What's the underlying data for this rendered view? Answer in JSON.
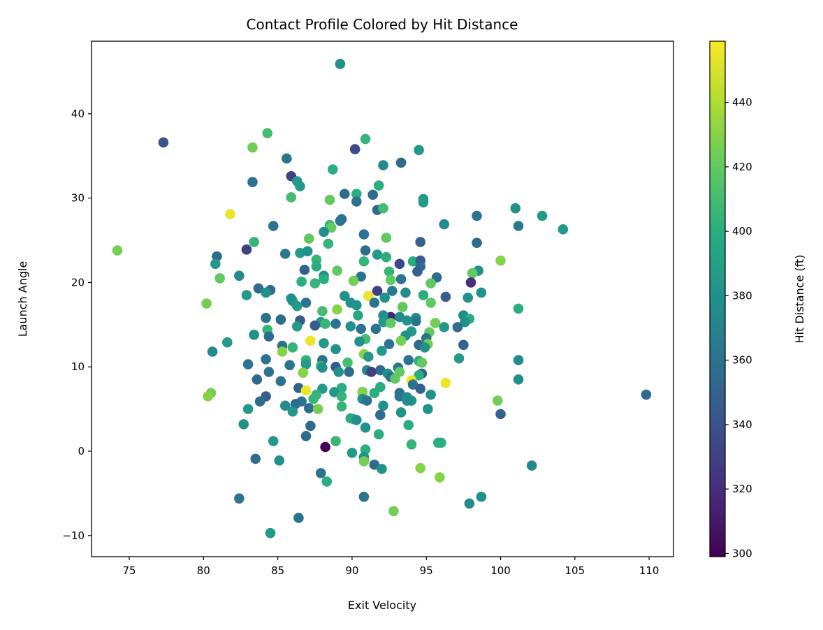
{
  "chart_data": {
    "type": "scatter",
    "title": "Contact Profile Colored by Hit Distance",
    "xlabel": "Exit Velocity",
    "ylabel": "Launch Angle",
    "xlim": [
      72.46,
      111.64
    ],
    "ylim": [
      -12.5,
      48.6
    ],
    "xticks": [
      75,
      80,
      85,
      90,
      95,
      100,
      105,
      110
    ],
    "yticks": [
      -10,
      0,
      10,
      20,
      30,
      40
    ],
    "grid": false,
    "colorbar": {
      "label": "Hit Distance (ft)",
      "colormap": "viridis",
      "range": [
        299,
        459
      ],
      "ticks": [
        300,
        320,
        340,
        360,
        380,
        400,
        420,
        440
      ]
    },
    "point_fields": [
      "exit_velocity",
      "launch_angle",
      "hit_distance"
    ],
    "points": [
      [
        89.2,
        45.9,
        380
      ],
      [
        77.3,
        36.6,
        340
      ],
      [
        74.2,
        23.8,
        425
      ],
      [
        84.3,
        37.7,
        410
      ],
      [
        83.3,
        36.0,
        425
      ],
      [
        90.2,
        35.8,
        335
      ],
      [
        90.9,
        37.0,
        405
      ],
      [
        94.5,
        35.7,
        385
      ],
      [
        93.3,
        34.2,
        355
      ],
      [
        92.1,
        33.9,
        375
      ],
      [
        85.6,
        34.7,
        360
      ],
      [
        88.7,
        33.4,
        400
      ],
      [
        85.9,
        32.6,
        330
      ],
      [
        83.3,
        31.9,
        360
      ],
      [
        86.3,
        32.0,
        385
      ],
      [
        86.5,
        31.4,
        385
      ],
      [
        91.8,
        31.5,
        400
      ],
      [
        81.8,
        28.1,
        455
      ],
      [
        89.5,
        30.5,
        355
      ],
      [
        90.3,
        30.5,
        400
      ],
      [
        91.4,
        30.4,
        355
      ],
      [
        85.9,
        30.1,
        410
      ],
      [
        88.5,
        29.8,
        420
      ],
      [
        90.3,
        29.6,
        360
      ],
      [
        94.8,
        29.9,
        385
      ],
      [
        94.8,
        29.5,
        385
      ],
      [
        91.7,
        28.6,
        355
      ],
      [
        92.1,
        28.8,
        410
      ],
      [
        101.0,
        28.8,
        380
      ],
      [
        102.8,
        27.9,
        385
      ],
      [
        98.4,
        27.9,
        360
      ],
      [
        96.2,
        26.9,
        375
      ],
      [
        101.2,
        26.7,
        365
      ],
      [
        104.2,
        26.3,
        385
      ],
      [
        84.7,
        26.7,
        360
      ],
      [
        89.2,
        27.3,
        360
      ],
      [
        89.3,
        27.5,
        360
      ],
      [
        88.5,
        26.8,
        405
      ],
      [
        88.6,
        26.5,
        420
      ],
      [
        88.1,
        26.0,
        380
      ],
      [
        87.1,
        25.2,
        420
      ],
      [
        90.8,
        25.7,
        360
      ],
      [
        92.3,
        25.3,
        420
      ],
      [
        98.4,
        24.7,
        355
      ],
      [
        94.6,
        24.8,
        350
      ],
      [
        88.4,
        24.6,
        405
      ],
      [
        83.4,
        24.8,
        405
      ],
      [
        82.9,
        23.9,
        330
      ],
      [
        80.9,
        23.1,
        355
      ],
      [
        80.8,
        22.2,
        385
      ],
      [
        85.5,
        23.4,
        365
      ],
      [
        86.5,
        23.5,
        385
      ],
      [
        87.0,
        23.7,
        380
      ],
      [
        90.9,
        23.8,
        355
      ],
      [
        91.7,
        23.3,
        385
      ],
      [
        92.3,
        23.0,
        400
      ],
      [
        90.8,
        22.5,
        405
      ],
      [
        87.6,
        22.7,
        405
      ],
      [
        93.2,
        22.2,
        335
      ],
      [
        94.1,
        22.5,
        400
      ],
      [
        94.6,
        22.6,
        345
      ],
      [
        100.0,
        22.6,
        430
      ],
      [
        86.8,
        21.5,
        350
      ],
      [
        88.1,
        20.8,
        380
      ],
      [
        87.6,
        21.9,
        400
      ],
      [
        89.0,
        21.4,
        420
      ],
      [
        92.5,
        21.3,
        405
      ],
      [
        94.6,
        21.9,
        355
      ],
      [
        94.4,
        21.3,
        350
      ],
      [
        98.5,
        21.4,
        380
      ],
      [
        98.1,
        21.1,
        420
      ],
      [
        81.1,
        20.5,
        420
      ],
      [
        82.4,
        20.8,
        375
      ],
      [
        95.7,
        20.6,
        355
      ],
      [
        90.6,
        20.7,
        360
      ],
      [
        86.6,
        20.1,
        400
      ],
      [
        88.1,
        20.4,
        400
      ],
      [
        87.5,
        19.9,
        405
      ],
      [
        98.0,
        20.0,
        320
      ],
      [
        93.3,
        20.4,
        360
      ],
      [
        92.6,
        20.3,
        420
      ],
      [
        95.3,
        19.9,
        420
      ],
      [
        90.1,
        20.2,
        425
      ],
      [
        83.7,
        19.3,
        355
      ],
      [
        84.5,
        19.1,
        355
      ],
      [
        84.2,
        18.8,
        380
      ],
      [
        91.7,
        19.0,
        330
      ],
      [
        93.6,
        18.8,
        375
      ],
      [
        92.7,
        19.0,
        365
      ],
      [
        98.7,
        18.8,
        380
      ],
      [
        96.3,
        18.3,
        345
      ],
      [
        97.8,
        18.2,
        380
      ],
      [
        94.8,
        18.5,
        400
      ],
      [
        82.9,
        18.5,
        385
      ],
      [
        85.9,
        18.1,
        380
      ],
      [
        86.0,
        17.8,
        380
      ],
      [
        89.5,
        18.4,
        380
      ],
      [
        91.1,
        18.4,
        455
      ],
      [
        92.2,
        18.2,
        380
      ],
      [
        95.3,
        17.6,
        420
      ],
      [
        80.2,
        17.5,
        425
      ],
      [
        86.9,
        17.6,
        360
      ],
      [
        86.3,
        17.2,
        385
      ],
      [
        89.9,
        17.6,
        380
      ],
      [
        90.3,
        17.3,
        380
      ],
      [
        91.5,
        17.6,
        360
      ],
      [
        93.4,
        17.1,
        420
      ],
      [
        89.0,
        16.8,
        430
      ],
      [
        101.2,
        16.9,
        400
      ],
      [
        88.0,
        16.6,
        410
      ],
      [
        90.4,
        16.1,
        395
      ],
      [
        92.6,
        15.9,
        315
      ],
      [
        92.1,
        16.1,
        380
      ],
      [
        93.2,
        15.9,
        375
      ],
      [
        97.5,
        16.1,
        375
      ],
      [
        97.9,
        15.7,
        400
      ],
      [
        85.2,
        15.6,
        355
      ],
      [
        86.5,
        15.5,
        345
      ],
      [
        84.2,
        15.8,
        360
      ],
      [
        94.3,
        15.8,
        380
      ],
      [
        94.3,
        15.4,
        360
      ],
      [
        92.1,
        15.3,
        385
      ],
      [
        92.6,
        15.2,
        420
      ],
      [
        93.7,
        15.5,
        380
      ],
      [
        87.9,
        15.3,
        385
      ],
      [
        89.9,
        14.8,
        380
      ],
      [
        95.6,
        15.2,
        425
      ],
      [
        97.6,
        15.3,
        380
      ],
      [
        96.2,
        14.7,
        385
      ],
      [
        97.1,
        14.7,
        355
      ],
      [
        87.5,
        14.9,
        345
      ],
      [
        88.2,
        15.1,
        405
      ],
      [
        88.9,
        15.1,
        360
      ],
      [
        90.6,
        14.5,
        360
      ],
      [
        91.6,
        14.5,
        360
      ],
      [
        86.3,
        14.8,
        385
      ],
      [
        84.3,
        14.4,
        405
      ],
      [
        94.0,
        14.2,
        385
      ],
      [
        84.4,
        13.6,
        355
      ],
      [
        83.4,
        13.8,
        380
      ],
      [
        95.2,
        14.1,
        420
      ],
      [
        93.6,
        13.7,
        380
      ],
      [
        90.9,
        13.3,
        410
      ],
      [
        95.0,
        13.4,
        360
      ],
      [
        87.2,
        13.1,
        455
      ],
      [
        93.3,
        13.1,
        425
      ],
      [
        90.5,
        13.0,
        380
      ],
      [
        92.5,
        12.7,
        360
      ],
      [
        88.1,
        12.8,
        385
      ],
      [
        95.1,
        12.7,
        425
      ],
      [
        94.5,
        12.6,
        355
      ],
      [
        97.5,
        12.6,
        350
      ],
      [
        81.6,
        12.9,
        385
      ],
      [
        85.3,
        12.5,
        360
      ],
      [
        86.0,
        12.3,
        405
      ],
      [
        88.9,
        12.1,
        380
      ],
      [
        94.9,
        12.3,
        380
      ],
      [
        92.0,
        11.9,
        385
      ],
      [
        85.3,
        11.8,
        430
      ],
      [
        80.6,
        11.8,
        375
      ],
      [
        90.8,
        11.5,
        430
      ],
      [
        91.1,
        11.2,
        385
      ],
      [
        97.2,
        11.0,
        385
      ],
      [
        84.2,
        10.9,
        360
      ],
      [
        88.0,
        10.8,
        360
      ],
      [
        86.9,
        10.8,
        405
      ],
      [
        94.5,
        10.7,
        400
      ],
      [
        94.7,
        10.5,
        420
      ],
      [
        93.8,
        10.8,
        360
      ],
      [
        89.7,
        10.5,
        410
      ],
      [
        83.0,
        10.3,
        360
      ],
      [
        86.9,
        10.3,
        385
      ],
      [
        85.8,
        10.2,
        360
      ],
      [
        87.9,
        10.1,
        405
      ],
      [
        88.9,
        10.0,
        345
      ],
      [
        93.1,
        9.9,
        360
      ],
      [
        88.0,
        9.9,
        380
      ],
      [
        101.2,
        10.8,
        375
      ],
      [
        91.0,
        9.6,
        375
      ],
      [
        91.9,
        9.6,
        355
      ],
      [
        94.7,
        9.2,
        350
      ],
      [
        86.7,
        9.3,
        430
      ],
      [
        91.3,
        9.4,
        330
      ],
      [
        89.8,
        9.4,
        355
      ],
      [
        93.2,
        9.4,
        420
      ],
      [
        92.4,
        9.2,
        380
      ],
      [
        94.5,
        9.0,
        400
      ],
      [
        92.6,
        8.8,
        360
      ],
      [
        84.4,
        9.4,
        360
      ],
      [
        83.6,
        8.5,
        355
      ],
      [
        85.2,
        8.3,
        360
      ],
      [
        89.1,
        9.4,
        380
      ],
      [
        92.9,
        8.6,
        420
      ],
      [
        94.0,
        8.4,
        455
      ],
      [
        101.2,
        8.5,
        380
      ],
      [
        96.3,
        8.1,
        455
      ],
      [
        86.4,
        7.5,
        350
      ],
      [
        88.0,
        7.4,
        385
      ],
      [
        91.9,
        7.6,
        400
      ],
      [
        94.1,
        7.9,
        360
      ],
      [
        94.6,
        7.4,
        350
      ],
      [
        89.3,
        7.5,
        400
      ],
      [
        90.7,
        7.0,
        410
      ],
      [
        90.7,
        6.9,
        430
      ],
      [
        86.9,
        7.2,
        455
      ],
      [
        88.8,
        7.0,
        385
      ],
      [
        87.6,
        6.7,
        405
      ],
      [
        93.2,
        6.9,
        360
      ],
      [
        91.5,
        6.9,
        400
      ],
      [
        80.5,
        6.9,
        425
      ],
      [
        80.3,
        6.5,
        430
      ],
      [
        84.2,
        6.5,
        345
      ],
      [
        87.4,
        6.2,
        405
      ],
      [
        89.3,
        6.5,
        405
      ],
      [
        93.2,
        6.5,
        360
      ],
      [
        93.7,
        6.4,
        375
      ],
      [
        95.3,
        6.7,
        380
      ],
      [
        109.8,
        6.7,
        355
      ],
      [
        90.7,
        6.2,
        380
      ],
      [
        91.0,
        6.0,
        360
      ],
      [
        94.0,
        6.0,
        380
      ],
      [
        99.8,
        6.0,
        425
      ],
      [
        83.8,
        5.9,
        355
      ],
      [
        93.7,
        6.0,
        375
      ],
      [
        86.6,
        5.9,
        360
      ],
      [
        92.1,
        5.4,
        380
      ],
      [
        85.5,
        5.4,
        375
      ],
      [
        86.2,
        5.6,
        355
      ],
      [
        89.3,
        5.3,
        405
      ],
      [
        87.1,
        5.1,
        355
      ],
      [
        87.7,
        5.0,
        425
      ],
      [
        95.1,
        5.0,
        380
      ],
      [
        83.0,
        5.0,
        385
      ],
      [
        86.0,
        4.7,
        385
      ],
      [
        93.3,
        4.6,
        380
      ],
      [
        91.9,
        4.3,
        355
      ],
      [
        100.0,
        4.4,
        350
      ],
      [
        89.9,
        3.9,
        400
      ],
      [
        90.1,
        3.8,
        400
      ],
      [
        90.3,
        3.7,
        380
      ],
      [
        82.7,
        3.2,
        380
      ],
      [
        93.8,
        3.1,
        400
      ],
      [
        87.2,
        3.0,
        355
      ],
      [
        90.9,
        2.8,
        380
      ],
      [
        91.8,
        2.0,
        400
      ],
      [
        86.9,
        1.8,
        355
      ],
      [
        84.7,
        1.2,
        385
      ],
      [
        88.9,
        1.2,
        405
      ],
      [
        95.8,
        1.0,
        400
      ],
      [
        96.0,
        1.0,
        400
      ],
      [
        94.0,
        0.8,
        405
      ],
      [
        88.2,
        0.5,
        300
      ],
      [
        90.9,
        0.2,
        400
      ],
      [
        90.0,
        -0.2,
        385
      ],
      [
        90.8,
        -0.7,
        380
      ],
      [
        90.8,
        -1.2,
        425
      ],
      [
        83.5,
        -0.9,
        355
      ],
      [
        85.1,
        -1.1,
        380
      ],
      [
        91.5,
        -1.6,
        355
      ],
      [
        102.1,
        -1.7,
        375
      ],
      [
        94.6,
        -2.0,
        430
      ],
      [
        92.0,
        -2.1,
        380
      ],
      [
        87.9,
        -2.6,
        360
      ],
      [
        95.9,
        -3.1,
        430
      ],
      [
        88.3,
        -3.6,
        400
      ],
      [
        90.8,
        -5.4,
        360
      ],
      [
        98.7,
        -5.4,
        380
      ],
      [
        82.4,
        -5.6,
        360
      ],
      [
        97.9,
        -6.2,
        375
      ],
      [
        92.8,
        -7.1,
        425
      ],
      [
        86.4,
        -7.9,
        360
      ],
      [
        84.5,
        -9.7,
        385
      ]
    ]
  }
}
